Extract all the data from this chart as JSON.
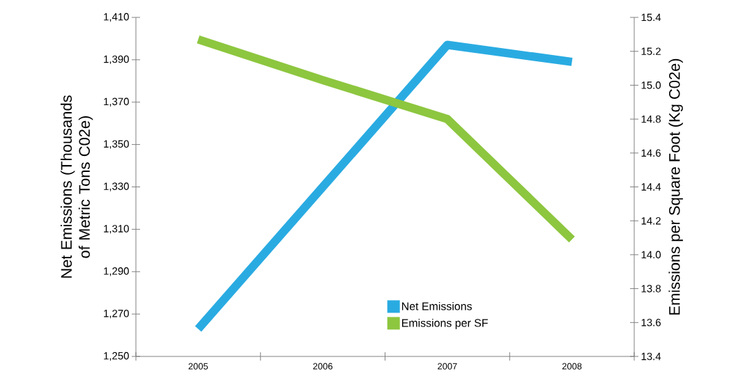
{
  "chart_data": {
    "type": "line",
    "categories": [
      "2005",
      "2006",
      "2007",
      "2008"
    ],
    "ylabel": "Net Emissions (Thousands of Metric Tons C02e)",
    "y2label": "Emissions per Square Foot (Kg C02e)",
    "series": [
      {
        "name": "Net Emissions",
        "color": "#29abe2",
        "values": [
          1263,
          1330,
          1397,
          1389
        ]
      },
      {
        "name": "Emissions per SF",
        "color": "#8dc63f",
        "values": [
          15.27,
          15.03,
          14.8,
          14.09
        ],
        "axis": "y2"
      }
    ],
    "ylim": [
      1250,
      1410
    ],
    "yticks": [
      {
        "value": 1250,
        "label": "1,250"
      },
      {
        "value": 1270,
        "label": "1,270"
      },
      {
        "value": 1290,
        "label": "1,290"
      },
      {
        "value": 1310,
        "label": "1,310"
      },
      {
        "value": 1330,
        "label": "1,330"
      },
      {
        "value": 1350,
        "label": "1,350"
      },
      {
        "value": 1370,
        "label": "1,370"
      },
      {
        "value": 1390,
        "label": "1,390"
      },
      {
        "value": 1410,
        "label": "1,410"
      }
    ],
    "y2lim": [
      13.4,
      15.4
    ],
    "y2ticks": [
      13.4,
      13.6,
      13.8,
      {
        "value": 14,
        "label": "14.0"
      },
      14.2,
      14.4,
      14.6,
      14.8,
      {
        "value": 15,
        "label": "15.0"
      },
      15.2,
      15.4
    ],
    "legend": "bottom"
  }
}
